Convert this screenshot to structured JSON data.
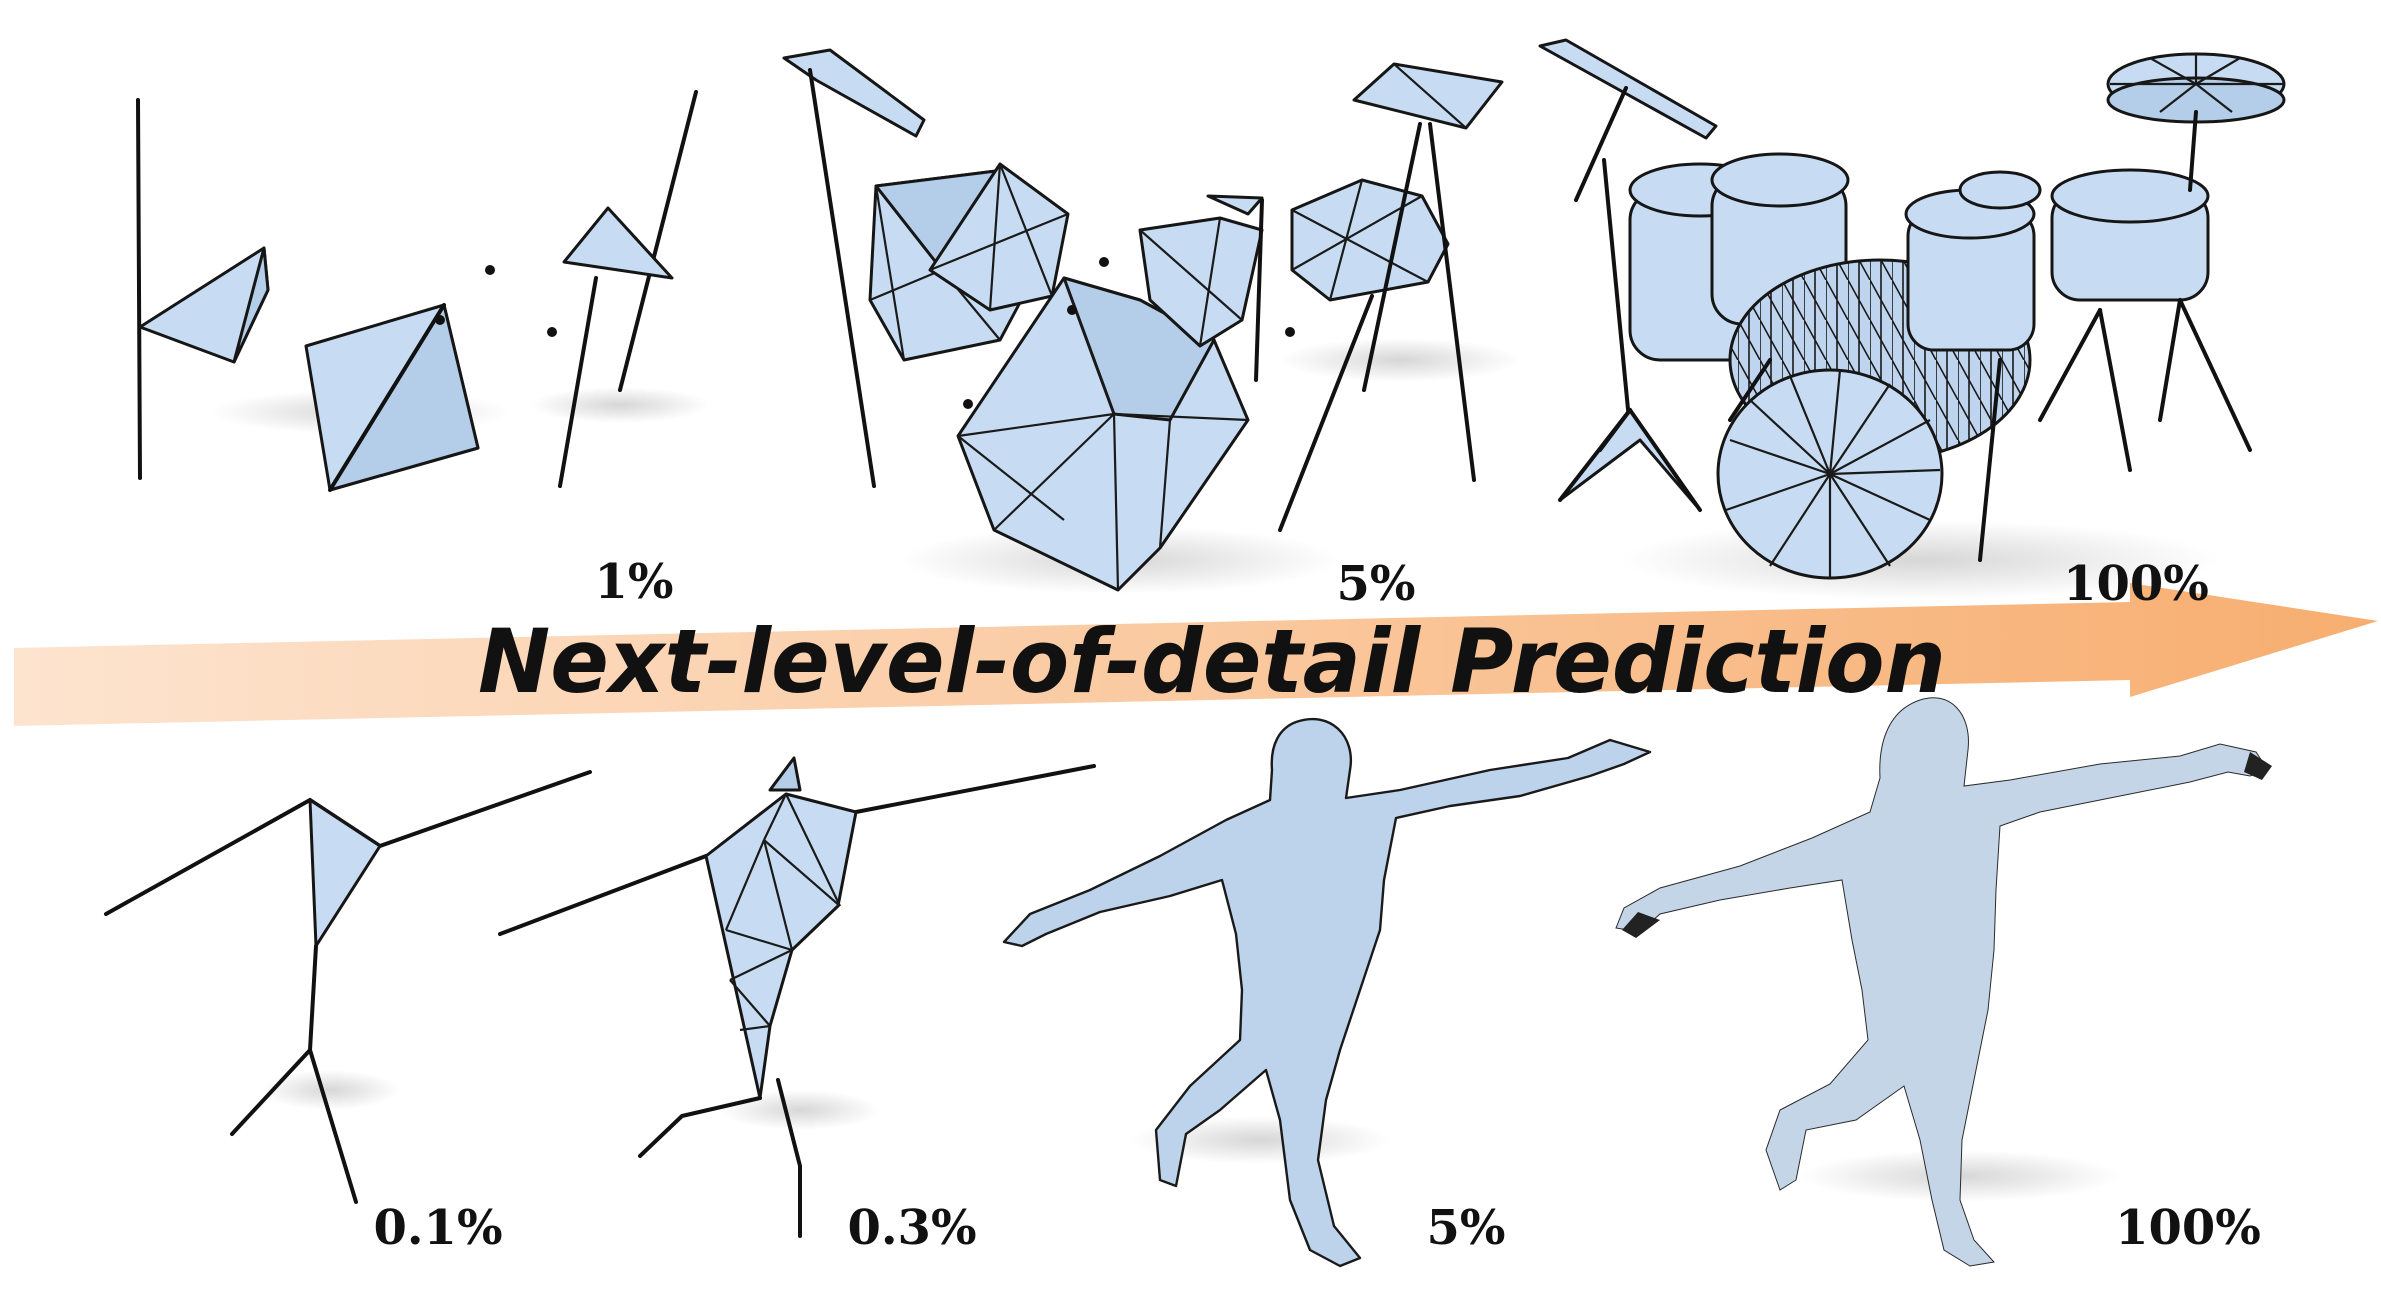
{
  "banner": {
    "text": "Next-level-of-detail Prediction",
    "gradient_start": "#fde4cf",
    "gradient_end": "#f7ae70"
  },
  "colors": {
    "mesh_fill": "#c7dcf2",
    "edge": "#161616"
  },
  "drum_row": {
    "stages": [
      {
        "label": "1%"
      },
      {
        "label": "5%"
      },
      {
        "label": "100%"
      }
    ]
  },
  "human_row": {
    "stages": [
      {
        "label": "0.1%"
      },
      {
        "label": "0.3%"
      },
      {
        "label": "5%"
      },
      {
        "label": "100%"
      }
    ]
  }
}
